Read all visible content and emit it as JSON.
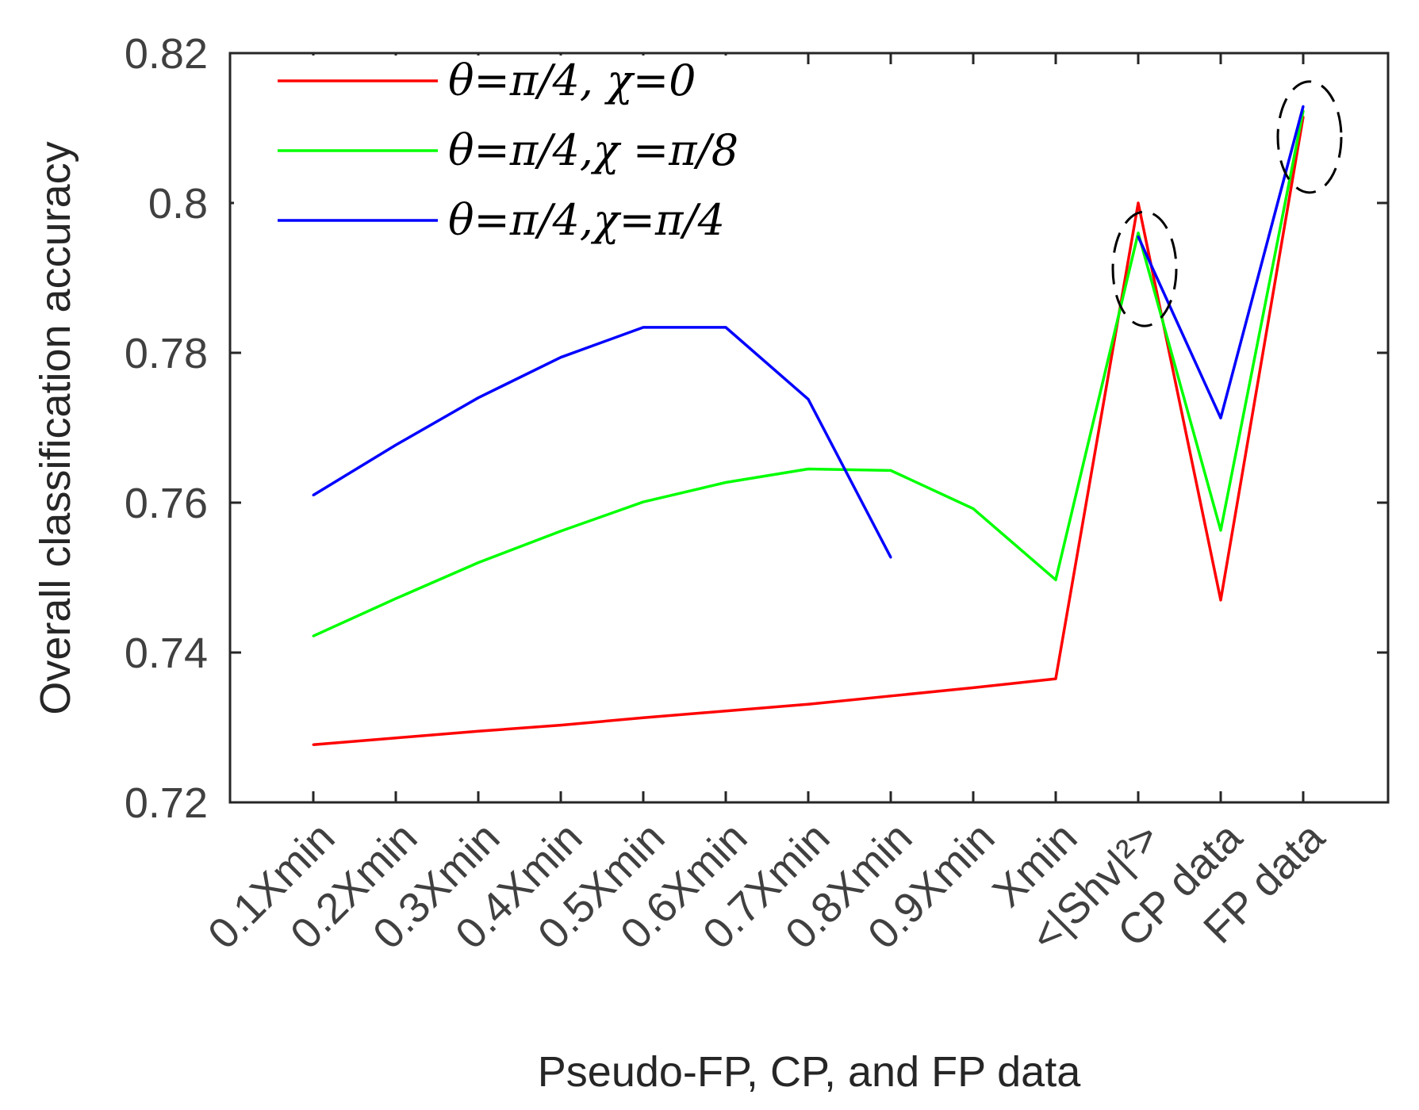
{
  "chart_data": {
    "type": "line",
    "title": "",
    "xlabel": "Pseudo-FP, CP, and FP data",
    "ylabel": "Overall classification accuracy",
    "categories": [
      "0.1Xmin",
      "0.2Xmin",
      "0.3Xmin",
      "0.4Xmin",
      "0.5Xmin",
      "0.6Xmin",
      "0.7Xmin",
      "0.8Xmin",
      "0.9Xmin",
      "Xmin",
      "<|Shv|²>",
      "CP data",
      "FP data"
    ],
    "y_ticks": [
      "0.72",
      "0.74",
      "0.76",
      "0.78",
      "0.8",
      "0.82"
    ],
    "ylim": [
      0.72,
      0.82
    ],
    "grid": false,
    "legend_position": "top-left",
    "series": [
      {
        "name": "θ=π/4,  χ=0",
        "color": "#ff0000",
        "values": [
          0.7277,
          0.7286,
          0.7295,
          0.7303,
          0.7313,
          0.7322,
          0.7331,
          0.7342,
          0.7353,
          0.7365,
          0.8,
          0.747,
          0.8115
        ]
      },
      {
        "name": "θ=π/4,χ =π/8",
        "color": "#00ff00",
        "values": [
          0.7422,
          0.7472,
          0.752,
          0.7562,
          0.7601,
          0.7627,
          0.7645,
          0.7643,
          0.7592,
          0.7497,
          0.796,
          0.7563,
          0.8123
        ]
      },
      {
        "name": "θ=π/4,χ=π/4",
        "color": "#0000ff",
        "values": [
          0.761,
          0.7677,
          0.774,
          0.7794,
          0.7834,
          0.7834,
          0.7738,
          0.7527,
          null,
          null,
          0.7955,
          0.7713,
          0.8129
        ]
      }
    ],
    "annotations": [
      {
        "type": "dashed-ellipse",
        "around": "<|Shv|²>"
      },
      {
        "type": "dashed-ellipse",
        "around": "FP data"
      }
    ]
  }
}
